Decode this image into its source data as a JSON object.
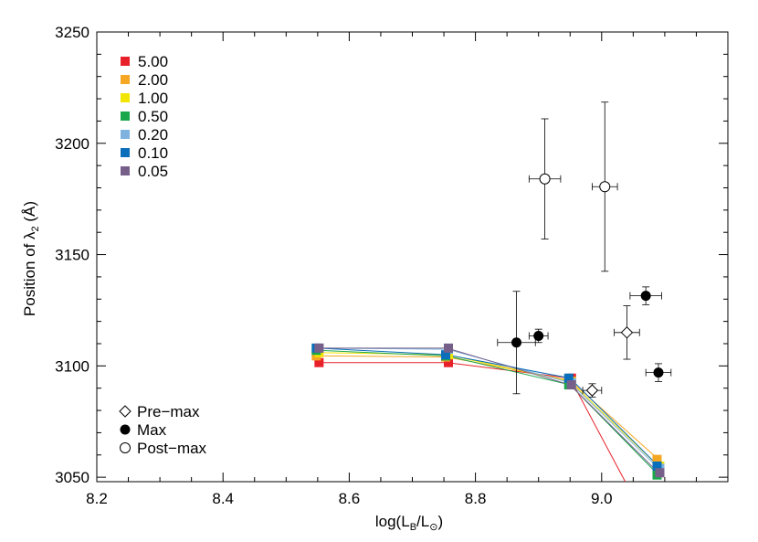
{
  "chart_data": {
    "type": "scatter",
    "x_axis": {
      "label_main": "log(L",
      "label_sub": "B",
      "label_mid": "/L",
      "label_sub2": "⊙",
      "label_end": ")",
      "range": [
        8.2,
        9.2
      ],
      "ticks": [
        8.2,
        8.4,
        8.6,
        8.8,
        9.0
      ],
      "tick_labels": [
        "8.2",
        "8.4",
        "8.6",
        "8.8",
        "9.0"
      ]
    },
    "y_axis": {
      "label_main": "Position of λ",
      "label_sub": "2",
      "label_end": " (Å)",
      "range": [
        3048,
        3250
      ],
      "ticks": [
        3050,
        3100,
        3150,
        3200,
        3250
      ],
      "tick_labels": [
        "3050",
        "3100",
        "3150",
        "3200",
        "3250"
      ]
    },
    "model_x": [
      8.55,
      8.755,
      8.95,
      9.09
    ],
    "model_series": [
      {
        "name": "5.00",
        "color": "#e8202a",
        "values": [
          3101.5,
          3101.5,
          3094.5,
          3020
        ]
      },
      {
        "name": "2.00",
        "color": "#f5a623",
        "values": [
          3104.5,
          3104.0,
          3093.5,
          3058
        ]
      },
      {
        "name": "1.00",
        "color": "#f2e600",
        "values": [
          3106.0,
          3105.0,
          3093.0,
          3055
        ]
      },
      {
        "name": "0.50",
        "color": "#1aa64b",
        "values": [
          3107.0,
          3104.5,
          3091.5,
          3051
        ]
      },
      {
        "name": "0.20",
        "color": "#7fb2de",
        "values": [
          3108.0,
          3107.5,
          3092.5,
          3054
        ]
      },
      {
        "name": "0.10",
        "color": "#0a6fba",
        "values": [
          3108.0,
          3105.0,
          3094.5,
          3055
        ]
      },
      {
        "name": "0.05",
        "color": "#76608a",
        "values": [
          3108.0,
          3108.0,
          3091.5,
          3052
        ]
      }
    ],
    "observations": [
      {
        "phase": "Pre-max",
        "marker": "diamond",
        "x": 8.985,
        "y": 3089,
        "xerr": 0.015,
        "yerr": 3
      },
      {
        "phase": "Pre-max",
        "marker": "diamond",
        "x": 9.04,
        "y": 3115,
        "xerr": 0.02,
        "yerr": 12
      },
      {
        "phase": "Max",
        "marker": "filled-circle",
        "x": 8.865,
        "y": 3110.5,
        "xerr": 0.03,
        "yerr": 23
      },
      {
        "phase": "Max",
        "marker": "filled-circle",
        "x": 8.9,
        "y": 3113.5,
        "xerr": 0.015,
        "yerr": 3
      },
      {
        "phase": "Max",
        "marker": "filled-circle",
        "x": 9.07,
        "y": 3131.5,
        "xerr": 0.025,
        "yerr": 4
      },
      {
        "phase": "Max",
        "marker": "filled-circle",
        "x": 9.09,
        "y": 3097,
        "xerr": 0.02,
        "yerr": 4
      },
      {
        "phase": "Post-max",
        "marker": "open-circle",
        "x": 8.91,
        "y": 3184,
        "xerr": 0.025,
        "yerr": 27
      },
      {
        "phase": "Post-max",
        "marker": "open-circle",
        "x": 9.005,
        "y": 3180.5,
        "xerr": 0.02,
        "yerr": 38
      }
    ],
    "legend_series": {
      "placement": "top-left",
      "labels": [
        "5.00",
        "2.00",
        "1.00",
        "0.50",
        "0.20",
        "0.10",
        "0.05"
      ]
    },
    "legend_markers": {
      "placement": "bottom-left",
      "labels": [
        "Pre−max",
        "Max",
        "Post−max"
      ]
    },
    "grid": false
  }
}
